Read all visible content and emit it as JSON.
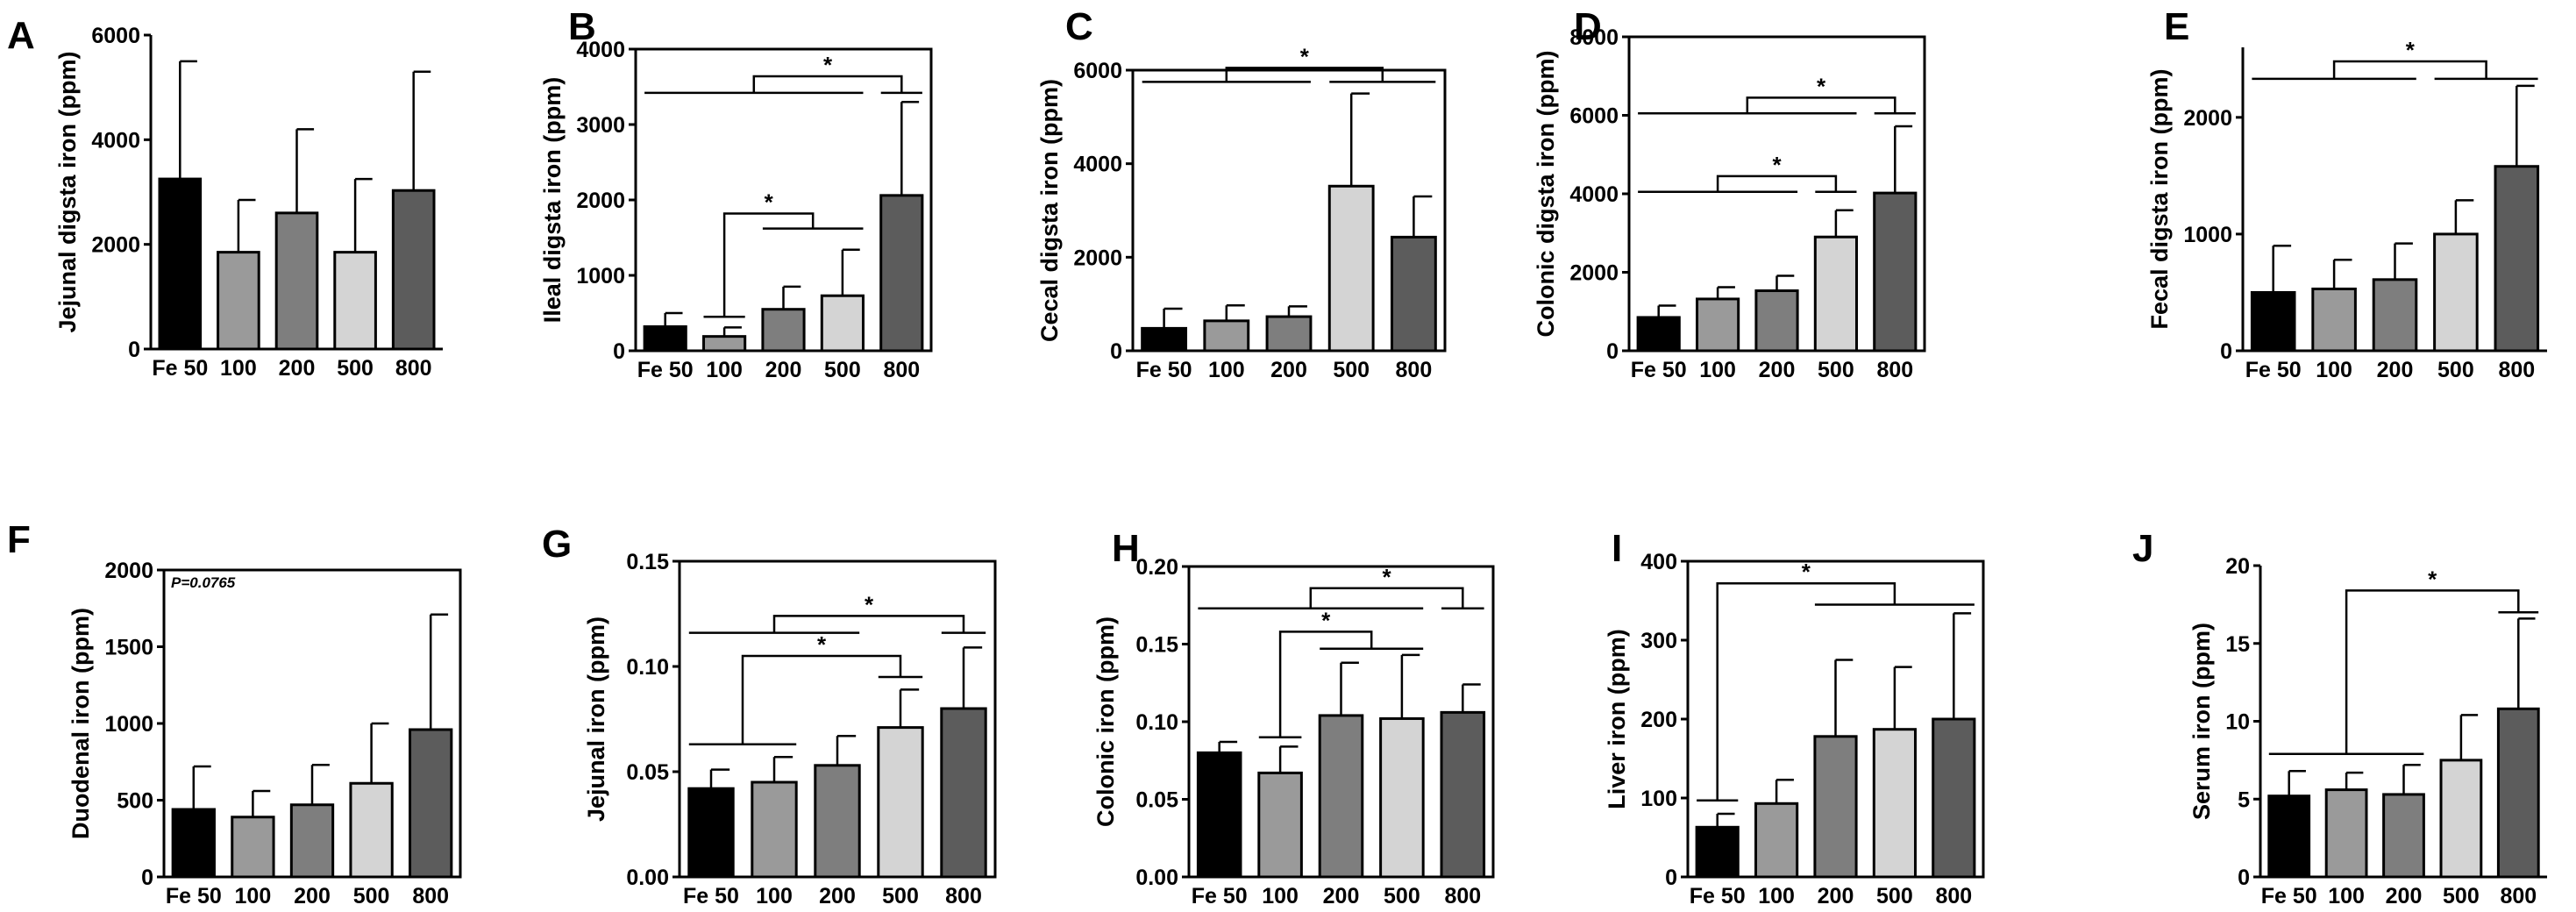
{
  "chart_data": [
    {
      "id": "A",
      "type": "bar",
      "title": "A",
      "ylabel": "Jejunal digsta iron (ppm)",
      "categories": [
        "Fe 50",
        "100",
        "200",
        "500",
        "800"
      ],
      "values": [
        3250,
        1850,
        2600,
        1850,
        3030
      ],
      "errors": [
        2250,
        1000,
        1600,
        1400,
        2270
      ],
      "ylim": [
        0,
        6000
      ],
      "yticks": [
        "0",
        "2000",
        "4000",
        "6000"
      ],
      "frame": "open",
      "annotations": []
    },
    {
      "id": "B",
      "type": "bar",
      "title": "B",
      "ylabel": "Ileal digsta iron (ppm)",
      "categories": [
        "Fe 50",
        "100",
        "200",
        "500",
        "800"
      ],
      "values": [
        320,
        190,
        550,
        730,
        2060
      ],
      "errors": [
        180,
        120,
        300,
        610,
        1240
      ],
      "ylim": [
        0,
        4000
      ],
      "yticks": [
        "0",
        "1000",
        "2000",
        "3000",
        "4000"
      ],
      "frame": "box",
      "annotations": [
        {
          "groupA": [
            0,
            3
          ],
          "levelA": 3420,
          "groupB": [
            4,
            4
          ],
          "levelB": 3420,
          "top": 3640,
          "label": "*"
        },
        {
          "groupA": [
            1,
            1
          ],
          "levelA": 450,
          "groupB": [
            2,
            3
          ],
          "levelB": 1620,
          "top": 1820,
          "label": "*"
        }
      ]
    },
    {
      "id": "C",
      "type": "bar",
      "title": "C",
      "ylabel": "Cecal digsta iron (ppm)",
      "categories": [
        "Fe 50",
        "100",
        "200",
        "500",
        "800"
      ],
      "values": [
        480,
        640,
        730,
        3520,
        2430
      ],
      "errors": [
        420,
        330,
        220,
        1980,
        870
      ],
      "ylim": [
        0,
        6000
      ],
      "yticks": [
        "0",
        "2000",
        "4000",
        "6000"
      ],
      "frame": "box",
      "annotations": [
        {
          "groupA": [
            0,
            2
          ],
          "levelA": 5750,
          "groupB": [
            3,
            4
          ],
          "levelB": 5750,
          "top": 6050,
          "label": "*"
        }
      ]
    },
    {
      "id": "D",
      "type": "bar",
      "title": "D",
      "ylabel": "Colonic digsta iron (ppm)",
      "categories": [
        "Fe 50",
        "100",
        "200",
        "500",
        "800"
      ],
      "values": [
        850,
        1320,
        1530,
        2900,
        4020
      ],
      "errors": [
        300,
        300,
        380,
        680,
        1700
      ],
      "ylim": [
        0,
        8000
      ],
      "yticks": [
        "0",
        "2000",
        "4000",
        "6000",
        "8000"
      ],
      "frame": "box",
      "annotations": [
        {
          "groupA": [
            0,
            3
          ],
          "levelA": 6050,
          "groupB": [
            4,
            4
          ],
          "levelB": 6050,
          "top": 6450,
          "label": "*"
        },
        {
          "groupA": [
            0,
            2
          ],
          "levelA": 4050,
          "groupB": [
            3,
            3
          ],
          "levelB": 4050,
          "top": 4450,
          "label": "*"
        }
      ]
    },
    {
      "id": "E",
      "type": "bar",
      "title": "E",
      "ylabel": "Fecal digsta iron (ppm)",
      "categories": [
        "Fe 50",
        "100",
        "200",
        "500",
        "800"
      ],
      "values": [
        500,
        530,
        610,
        1000,
        1580
      ],
      "errors": [
        400,
        250,
        310,
        290,
        690
      ],
      "ylim": [
        0,
        2600
      ],
      "yticks": [
        "0",
        "1000",
        "2000"
      ],
      "frame": "open",
      "annotations": [
        {
          "groupA": [
            0,
            2
          ],
          "levelA": 2330,
          "groupB": [
            3,
            4
          ],
          "levelB": 2330,
          "top": 2480,
          "label": "*"
        }
      ]
    },
    {
      "id": "F",
      "type": "bar",
      "title": "F",
      "ylabel": "Duodenal iron (ppm)",
      "categories": [
        "Fe 50",
        "100",
        "200",
        "500",
        "800"
      ],
      "values": [
        440,
        390,
        470,
        610,
        960
      ],
      "errors": [
        280,
        170,
        260,
        390,
        750
      ],
      "ylim": [
        0,
        2000
      ],
      "yticks": [
        "0",
        "500",
        "1000",
        "1500",
        "2000"
      ],
      "frame": "box",
      "note": "P=0.0765",
      "annotations": []
    },
    {
      "id": "G",
      "type": "bar",
      "title": "G",
      "ylabel": "Jejunal iron (ppm)",
      "categories": [
        "Fe 50",
        "100",
        "200",
        "500",
        "800"
      ],
      "values": [
        0.042,
        0.045,
        0.053,
        0.071,
        0.08
      ],
      "errors": [
        0.009,
        0.012,
        0.014,
        0.018,
        0.029
      ],
      "ylim": [
        0,
        0.15
      ],
      "yticks": [
        "0.00",
        "0.05",
        "0.10",
        "0.15"
      ],
      "frame": "box",
      "annotations": [
        {
          "groupA": [
            0,
            2
          ],
          "levelA": 0.116,
          "groupB": [
            4,
            4
          ],
          "levelB": 0.116,
          "top": 0.124,
          "label": "*"
        },
        {
          "groupA": [
            0,
            1
          ],
          "levelA": 0.063,
          "groupB": [
            3,
            3
          ],
          "levelB": 0.095,
          "top": 0.105,
          "label": "*"
        }
      ]
    },
    {
      "id": "H",
      "type": "bar",
      "title": "H",
      "ylabel": "Colonic iron (ppm)",
      "categories": [
        "Fe 50",
        "100",
        "200",
        "500",
        "800"
      ],
      "values": [
        0.08,
        0.067,
        0.104,
        0.102,
        0.106
      ],
      "errors": [
        0.007,
        0.017,
        0.034,
        0.041,
        0.018
      ],
      "ylim": [
        0,
        0.2
      ],
      "yticks": [
        "0.00",
        "0.05",
        "0.10",
        "0.15",
        "0.20"
      ],
      "frame": "box",
      "annotations": [
        {
          "groupA": [
            0,
            3
          ],
          "levelA": 0.173,
          "groupB": [
            4,
            4
          ],
          "levelB": 0.173,
          "top": 0.186,
          "label": "*"
        },
        {
          "groupA": [
            1,
            1
          ],
          "levelA": 0.09,
          "groupB": [
            2,
            3
          ],
          "levelB": 0.147,
          "top": 0.158,
          "label": "*"
        }
      ]
    },
    {
      "id": "I",
      "type": "bar",
      "title": "I",
      "ylabel": "Liver iron (ppm)",
      "categories": [
        "Fe 50",
        "100",
        "200",
        "500",
        "800"
      ],
      "values": [
        63,
        93,
        178,
        187,
        200
      ],
      "errors": [
        17,
        30,
        97,
        79,
        134
      ],
      "ylim": [
        0,
        400
      ],
      "yticks": [
        "0",
        "100",
        "200",
        "300",
        "400"
      ],
      "frame": "box",
      "annotations": [
        {
          "groupA": [
            0,
            0
          ],
          "levelA": 97,
          "groupB": [
            2,
            4
          ],
          "levelB": 345,
          "top": 372,
          "label": "*"
        }
      ]
    },
    {
      "id": "J",
      "type": "bar",
      "title": "J",
      "ylabel": "Serum iron (ppm)",
      "categories": [
        "Fe 50",
        "100",
        "200",
        "500",
        "800"
      ],
      "values": [
        5.2,
        5.6,
        5.3,
        7.5,
        10.8
      ],
      "errors": [
        1.6,
        1.1,
        1.9,
        2.9,
        5.8
      ],
      "ylim": [
        0,
        20
      ],
      "yticks": [
        "0",
        "5",
        "10",
        "15",
        "20"
      ],
      "frame": "open",
      "annotations": [
        {
          "groupA": [
            0,
            2
          ],
          "levelA": 7.9,
          "groupB": [
            4,
            4
          ],
          "levelB": 17.0,
          "top": 18.4,
          "label": "*"
        }
      ]
    }
  ],
  "bar_colors": [
    "#000000",
    "#9a9a9a",
    "#7e7e7e",
    "#d4d4d4",
    "#5c5c5c"
  ]
}
